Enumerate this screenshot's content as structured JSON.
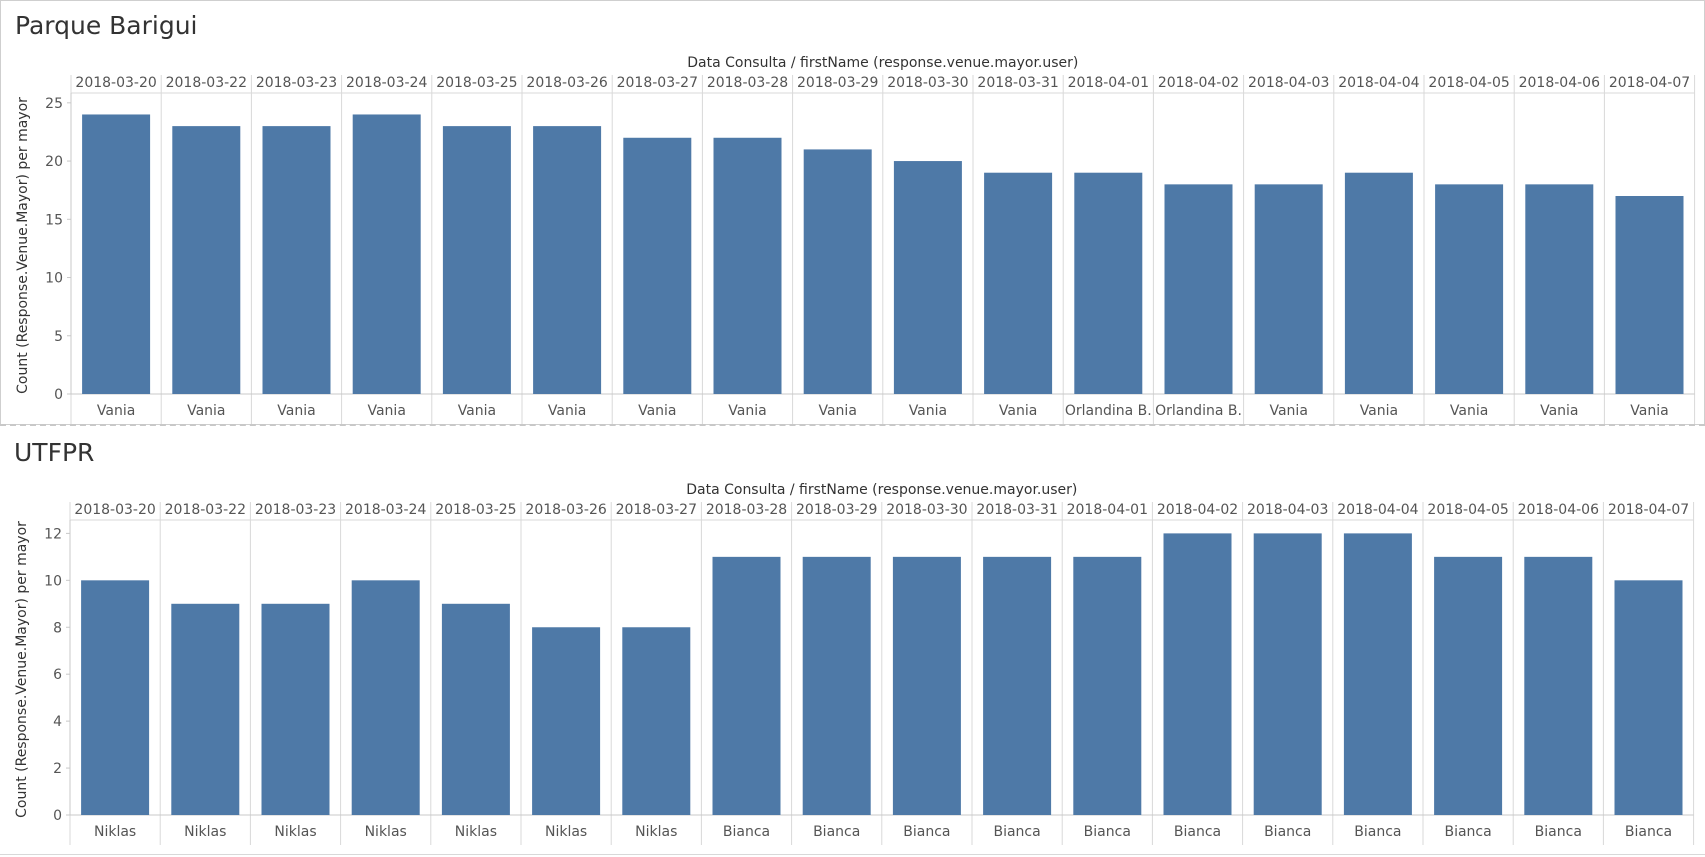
{
  "colors": {
    "bar": "#4e79a7",
    "grid": "#d9d9d9",
    "axis": "#c8c8c8",
    "text": "#333333",
    "tick_text": "#555555"
  },
  "chart_data": [
    {
      "type": "bar",
      "title": "Parque Barigui",
      "header_label": "Data Consulta / firstName (response.venue.mayor.user)",
      "ylabel": "Count (Response.Venue.Mayor) per mayor",
      "ylim": [
        0,
        25.5
      ],
      "yticks": [
        0,
        5,
        10,
        15,
        20,
        25
      ],
      "categories": [
        "2018-03-20",
        "2018-03-22",
        "2018-03-23",
        "2018-03-24",
        "2018-03-25",
        "2018-03-26",
        "2018-03-27",
        "2018-03-28",
        "2018-03-29",
        "2018-03-30",
        "2018-03-31",
        "2018-04-01",
        "2018-04-02",
        "2018-04-03",
        "2018-04-04",
        "2018-04-05",
        "2018-04-06",
        "2018-04-07"
      ],
      "subcategories": [
        "Vania",
        "Vania",
        "Vania",
        "Vania",
        "Vania",
        "Vania",
        "Vania",
        "Vania",
        "Vania",
        "Vania",
        "Vania",
        "Orlandina B.",
        "Orlandina B.",
        "Vania",
        "Vania",
        "Vania",
        "Vania",
        "Vania"
      ],
      "values": [
        24,
        23,
        23,
        24,
        23,
        23,
        22,
        22,
        21,
        20,
        19,
        19,
        18,
        18,
        19,
        18,
        18,
        17
      ]
    },
    {
      "type": "bar",
      "title": "UTFPR",
      "header_label": "Data Consulta / firstName (response.venue.mayor.user)",
      "ylabel": "Count (Response.Venue.Mayor) per mayor",
      "ylim": [
        0,
        12.4
      ],
      "yticks": [
        0,
        2,
        4,
        6,
        8,
        10,
        12
      ],
      "categories": [
        "2018-03-20",
        "2018-03-22",
        "2018-03-23",
        "2018-03-24",
        "2018-03-25",
        "2018-03-26",
        "2018-03-27",
        "2018-03-28",
        "2018-03-29",
        "2018-03-30",
        "2018-03-31",
        "2018-04-01",
        "2018-04-02",
        "2018-04-03",
        "2018-04-04",
        "2018-04-05",
        "2018-04-06",
        "2018-04-07"
      ],
      "subcategories": [
        "Niklas",
        "Niklas",
        "Niklas",
        "Niklas",
        "Niklas",
        "Niklas",
        "Niklas",
        "Bianca",
        "Bianca",
        "Bianca",
        "Bianca",
        "Bianca",
        "Bianca",
        "Bianca",
        "Bianca",
        "Bianca",
        "Bianca",
        "Bianca"
      ],
      "values": [
        10,
        9,
        9,
        10,
        9,
        8,
        8,
        11,
        11,
        11,
        11,
        11,
        12,
        12,
        12,
        11,
        11,
        10
      ]
    }
  ]
}
